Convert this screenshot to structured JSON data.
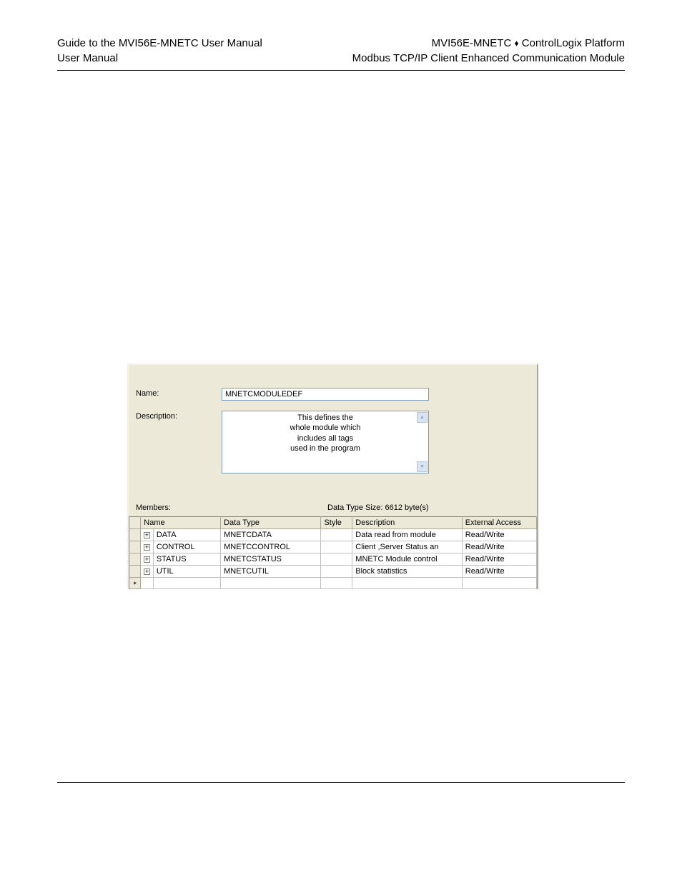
{
  "header": {
    "left_line1": "Guide to the MVI56E-MNETC User Manual",
    "left_line2": "User Manual",
    "right_line1_a": "MVI56E-MNETC",
    "right_line1_b": "ControlLogix Platform",
    "right_line2": "Modbus TCP/IP Client Enhanced Communication Module"
  },
  "dialog": {
    "name_label": "Name:",
    "name_value": "MNETCMODULEDEF",
    "desc_label": "Description:",
    "desc_value": "This defines the\nwhole module which\nincludes all tags\nused in the program",
    "members_label": "Members:",
    "size_label": "Data Type Size: 6612 byte(s)",
    "background_color": "#ece9d8",
    "input_border": "#7f9db9"
  },
  "grid": {
    "columns": [
      "Name",
      "Data Type",
      "Style",
      "Description",
      "External Access"
    ],
    "rows": [
      {
        "name": "DATA",
        "type": "MNETCDATA",
        "style": "",
        "desc": "Data read from module",
        "ext": "Read/Write",
        "expandable": true
      },
      {
        "name": "CONTROL",
        "type": "MNETCCONTROL",
        "style": "",
        "desc": "Client ,Server Status an",
        "ext": "Read/Write",
        "expandable": true
      },
      {
        "name": "STATUS",
        "type": "MNETCSTATUS",
        "style": "",
        "desc": "MNETC Module control",
        "ext": "Read/Write",
        "expandable": true
      },
      {
        "name": "UTIL",
        "type": "MNETCUTIL",
        "style": "",
        "desc": "Block statistics",
        "ext": "Read/Write",
        "expandable": true
      }
    ]
  }
}
